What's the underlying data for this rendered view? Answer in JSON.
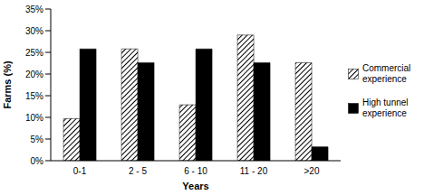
{
  "chart_data": {
    "type": "bar",
    "categories": [
      "0-1",
      "2 - 5",
      "6 - 10",
      "11 - 20",
      ">20"
    ],
    "x_label": "Years",
    "y_label": "Farms (%)",
    "series": [
      {
        "name": "Commercial experience",
        "color": "#000000",
        "values": [
          9.7,
          25.8,
          12.9,
          29.0,
          22.6
        ]
      },
      {
        "name": "High tunnel experience",
        "color": "#000000",
        "values": [
          25.8,
          22.6,
          25.8,
          22.6,
          3.2
        ]
      }
    ],
    "ylim": [
      0,
      35
    ],
    "yticks": [
      {
        "value": 0,
        "label": "0%"
      },
      {
        "value": 5,
        "label": "5%"
      },
      {
        "value": 10,
        "label": "10%"
      },
      {
        "value": 15,
        "label": "15%"
      },
      {
        "value": 20,
        "label": "20%"
      },
      {
        "value": 25,
        "label": "25%"
      },
      {
        "value": 30,
        "label": "30%"
      },
      {
        "value": 35,
        "label": "35%"
      }
    ],
    "grid": false,
    "legend": "right"
  }
}
